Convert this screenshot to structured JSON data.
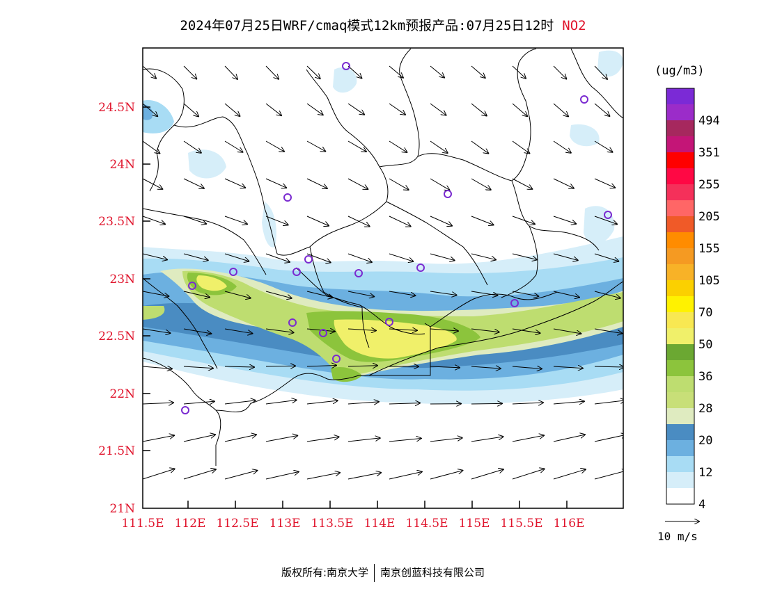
{
  "title": {
    "text": "2024年07月25日WRF/cmaq模式12km预报产品:07月25日12时",
    "species": "NO2"
  },
  "axes": {
    "lat_ticks": [
      "24.5N",
      "24N",
      "23.5N",
      "23N",
      "22.5N",
      "22N",
      "21.5N",
      "21N"
    ],
    "lon_ticks": [
      "111.5E",
      "112E",
      "112.5E",
      "113E",
      "113.5E",
      "114E",
      "114.5E",
      "115E",
      "115.5E",
      "116E"
    ]
  },
  "colorbar": {
    "unit": "(ug/m3)",
    "levels": [
      {
        "color": "#7b2ad6"
      },
      {
        "color": "#9b2cc9",
        "label": "494"
      },
      {
        "color": "#a6285e"
      },
      {
        "color": "#c41577",
        "label": "351"
      },
      {
        "color": "#ff0000"
      },
      {
        "color": "#ff0844",
        "label": "255"
      },
      {
        "color": "#f5305a"
      },
      {
        "color": "#ff6666",
        "label": "205"
      },
      {
        "color": "#f05a28"
      },
      {
        "color": "#ff8c00",
        "label": "155"
      },
      {
        "color": "#f59a22"
      },
      {
        "color": "#f8b227",
        "label": "105"
      },
      {
        "color": "#fbd000"
      },
      {
        "color": "#fff200",
        "label": "70"
      },
      {
        "color": "#f8e852"
      },
      {
        "color": "#f0f06a",
        "label": "50"
      },
      {
        "color": "#6ba832"
      },
      {
        "color": "#8cc43c",
        "label": "36"
      },
      {
        "color": "#bedd70"
      },
      {
        "color": "#c8df78",
        "label": "28"
      },
      {
        "color": "#dfebc0"
      },
      {
        "color": "#4a8cc2",
        "label": "20"
      },
      {
        "color": "#6cb0e0"
      },
      {
        "color": "#a8dcf4",
        "label": "12"
      },
      {
        "color": "#d6eef9"
      },
      {
        "color": "#ffffff",
        "label": "4"
      }
    ]
  },
  "wind_reference": {
    "label": "10 m/s"
  },
  "footer": {
    "left": "版权所有:南京大学",
    "right": "南京创蓝科技有限公司"
  }
}
